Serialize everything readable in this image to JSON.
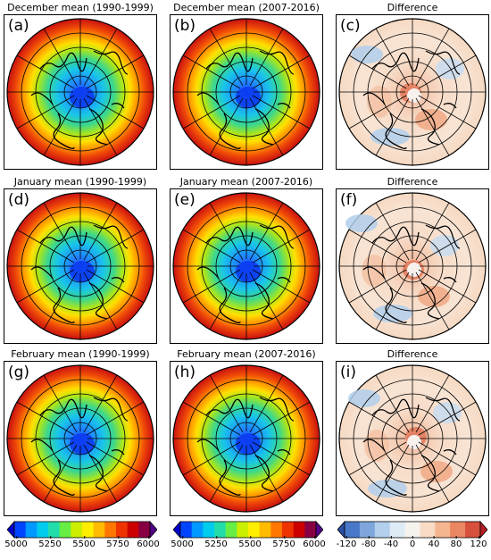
{
  "panels": [
    {
      "label": "(a)",
      "title": "December mean (1990-1999)",
      "kind": "mean"
    },
    {
      "label": "(b)",
      "title": "December mean (2007-2016)",
      "kind": "mean"
    },
    {
      "label": "(c)",
      "title": "Difference",
      "kind": "diff"
    },
    {
      "label": "(d)",
      "title": "January mean (1990-1999)",
      "kind": "mean"
    },
    {
      "label": "(e)",
      "title": "January mean (2007-2016)",
      "kind": "mean"
    },
    {
      "label": "(f)",
      "title": "Difference",
      "kind": "diff"
    },
    {
      "label": "(g)",
      "title": "February mean (1990-1999)",
      "kind": "mean"
    },
    {
      "label": "(h)",
      "title": "February mean (2007-2016)",
      "kind": "mean"
    },
    {
      "label": "(i)",
      "title": "Difference",
      "kind": "diff"
    }
  ],
  "colorbars": [
    {
      "ticks": [
        "5000",
        "5250",
        "5500",
        "5750",
        "6000"
      ],
      "kind": "mean"
    },
    {
      "ticks": [
        "5000",
        "5250",
        "5500",
        "5750",
        "6000"
      ],
      "kind": "mean"
    },
    {
      "ticks": [
        "-120",
        "-80",
        "-40",
        "0",
        "40",
        "80",
        "120"
      ],
      "kind": "diff"
    }
  ],
  "colors": {
    "mean_scale": [
      "#0000cc",
      "#0044ff",
      "#0099ff",
      "#00ccee",
      "#22ddaa",
      "#66ee44",
      "#ccee00",
      "#ffee00",
      "#ffbb00",
      "#ff7700",
      "#ee3300",
      "#cc0000",
      "#880044",
      "#550088"
    ],
    "diff_scale": [
      "#2a4fa6",
      "#4a78c8",
      "#7fa6dc",
      "#b2cfec",
      "#deebf5",
      "#f6f2ee",
      "#f8dcc6",
      "#f5b58f",
      "#ea8661",
      "#d6503c",
      "#b51e23"
    ]
  }
}
